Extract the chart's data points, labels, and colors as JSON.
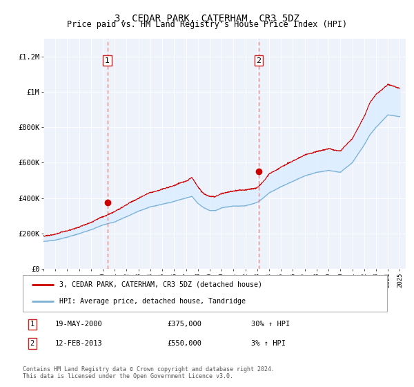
{
  "title": "3, CEDAR PARK, CATERHAM, CR3 5DZ",
  "subtitle": "Price paid vs. HM Land Registry's House Price Index (HPI)",
  "ylim": [
    0,
    1300000
  ],
  "xlim_start": 1995.0,
  "xlim_end": 2025.5,
  "yticks": [
    0,
    200000,
    400000,
    600000,
    800000,
    1000000,
    1200000
  ],
  "ytick_labels": [
    "£0",
    "£200K",
    "£400K",
    "£600K",
    "£800K",
    "£1M",
    "£1.2M"
  ],
  "xtick_years": [
    1995,
    1996,
    1997,
    1998,
    1999,
    2000,
    2001,
    2002,
    2003,
    2004,
    2005,
    2006,
    2007,
    2008,
    2009,
    2010,
    2011,
    2012,
    2013,
    2014,
    2015,
    2016,
    2017,
    2018,
    2019,
    2020,
    2021,
    2022,
    2023,
    2024,
    2025
  ],
  "sale1_year": 2000.38,
  "sale1_price": 375000,
  "sale1_label": "1",
  "sale2_year": 2013.12,
  "sale2_price": 550000,
  "sale2_label": "2",
  "red_line_color": "#cc0000",
  "blue_line_color": "#7ab0d4",
  "fill_color": "#ddeeff",
  "vline_color": "#e87070",
  "bg_color": "#eef2fa",
  "legend_line1": "3, CEDAR PARK, CATERHAM, CR3 5DZ (detached house)",
  "legend_line2": "HPI: Average price, detached house, Tandridge",
  "note1_num": "1",
  "note1_date": "19-MAY-2000",
  "note1_price": "£375,000",
  "note1_hpi": "30% ↑ HPI",
  "note2_num": "2",
  "note2_date": "12-FEB-2013",
  "note2_price": "£550,000",
  "note2_hpi": "3% ↑ HPI",
  "footer": "Contains HM Land Registry data © Crown copyright and database right 2024.\nThis data is licensed under the Open Government Licence v3.0."
}
